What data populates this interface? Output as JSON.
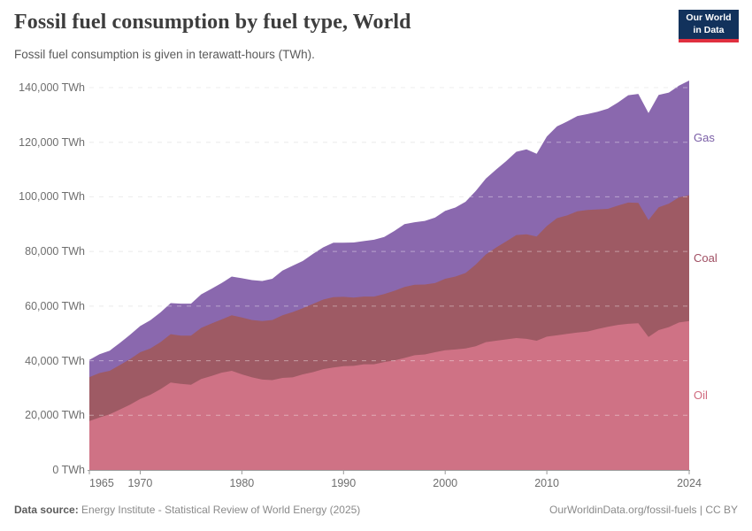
{
  "header": {
    "title": "Fossil fuel consumption by fuel type, World",
    "subtitle": "Fossil fuel consumption is given in terawatt-hours (TWh).",
    "logo_line1": "Our World",
    "logo_line2": "in Data"
  },
  "footer": {
    "source_label": "Data source:",
    "source_text": "Energy Institute - Statistical Review of World Energy (2025)",
    "link_text": "OurWorldinData.org/fossil-fuels | CC BY"
  },
  "colors": {
    "oil_area": "#cf7285",
    "coal_area": "#9e5a64",
    "gas_area": "#8a68ae",
    "oil_label": "#d06a7e",
    "coal_label": "#a04f63",
    "gas_label": "#7a5ea6",
    "gridline": "#e2e2e2",
    "axis": "#9a9a9a",
    "logo_bg": "#12325c",
    "logo_stripe": "#e0303f"
  },
  "chart_data": {
    "type": "area",
    "stacked": true,
    "title": "Fossil fuel consumption by fuel type, World",
    "ylabel": "TWh",
    "ylim": [
      0,
      140000
    ],
    "grid": true,
    "legend_position": "right-end-labels",
    "x": [
      1965,
      1966,
      1967,
      1968,
      1969,
      1970,
      1971,
      1972,
      1973,
      1974,
      1975,
      1976,
      1977,
      1978,
      1979,
      1980,
      1981,
      1982,
      1983,
      1984,
      1985,
      1986,
      1987,
      1988,
      1989,
      1990,
      1991,
      1992,
      1993,
      1994,
      1995,
      1996,
      1997,
      1998,
      1999,
      2000,
      2001,
      2002,
      2003,
      2004,
      2005,
      2006,
      2007,
      2008,
      2009,
      2010,
      2011,
      2012,
      2013,
      2014,
      2015,
      2016,
      2017,
      2018,
      2019,
      2020,
      2021,
      2022,
      2023,
      2024
    ],
    "series": [
      {
        "name": "Oil",
        "values": [
          17900,
          19200,
          20400,
          22100,
          23900,
          26000,
          27500,
          29600,
          32000,
          31500,
          31200,
          33300,
          34400,
          35600,
          36300,
          35000,
          33900,
          33100,
          32900,
          33700,
          33900,
          35000,
          35800,
          36900,
          37500,
          38000,
          38100,
          38700,
          38700,
          39500,
          40100,
          41000,
          42000,
          42300,
          43100,
          43800,
          44100,
          44500,
          45300,
          46800,
          47300,
          47800,
          48300,
          48000,
          47300,
          48800,
          49300,
          49800,
          50300,
          50700,
          51600,
          52400,
          53100,
          53500,
          53700,
          48700,
          51200,
          52300,
          54000,
          54500
        ]
      },
      {
        "name": "Coal",
        "values": [
          16100,
          16300,
          15900,
          16300,
          16700,
          17100,
          17000,
          17200,
          17700,
          17700,
          18000,
          18700,
          19200,
          19500,
          20300,
          20800,
          21000,
          21400,
          22000,
          22900,
          23900,
          24200,
          25000,
          25500,
          25800,
          25400,
          25000,
          24800,
          24800,
          24900,
          25500,
          26000,
          25800,
          25600,
          25300,
          26200,
          26700,
          27600,
          29900,
          32100,
          34100,
          35900,
          37700,
          38300,
          38200,
          40500,
          42900,
          43400,
          44400,
          44500,
          43800,
          43200,
          43700,
          44400,
          44100,
          42800,
          45000,
          45200,
          45800,
          46100
        ]
      },
      {
        "name": "Gas",
        "values": [
          6300,
          6900,
          7400,
          8100,
          8900,
          9600,
          10300,
          10900,
          11400,
          11700,
          11700,
          12300,
          12700,
          13300,
          14200,
          14400,
          14600,
          14700,
          15100,
          16400,
          17000,
          17300,
          18300,
          19100,
          19900,
          19800,
          20200,
          20300,
          20800,
          20900,
          21900,
          23000,
          22900,
          23300,
          24000,
          24900,
          25300,
          26100,
          26900,
          27800,
          28600,
          29400,
          30500,
          31100,
          30300,
          32800,
          33600,
          34400,
          34900,
          35100,
          35800,
          36700,
          37800,
          39300,
          39900,
          39200,
          41100,
          40700,
          40900,
          42000
        ]
      }
    ],
    "y_ticks": [
      {
        "value": 0,
        "label": "0 TWh"
      },
      {
        "value": 20000,
        "label": "20,000 TWh"
      },
      {
        "value": 40000,
        "label": "40,000 TWh"
      },
      {
        "value": 60000,
        "label": "60,000 TWh"
      },
      {
        "value": 80000,
        "label": "80,000 TWh"
      },
      {
        "value": 100000,
        "label": "100,000 TWh"
      },
      {
        "value": 120000,
        "label": "120,000 TWh"
      },
      {
        "value": 140000,
        "label": "140,000 TWh"
      }
    ],
    "x_ticks": [
      {
        "value": 1965,
        "label": "1965",
        "align": "left"
      },
      {
        "value": 1970,
        "label": "1970",
        "align": "center"
      },
      {
        "value": 1980,
        "label": "1980",
        "align": "center"
      },
      {
        "value": 1990,
        "label": "1990",
        "align": "center"
      },
      {
        "value": 2000,
        "label": "2000",
        "align": "center"
      },
      {
        "value": 2010,
        "label": "2010",
        "align": "center"
      },
      {
        "value": 2024,
        "label": "2024",
        "align": "center"
      }
    ]
  }
}
